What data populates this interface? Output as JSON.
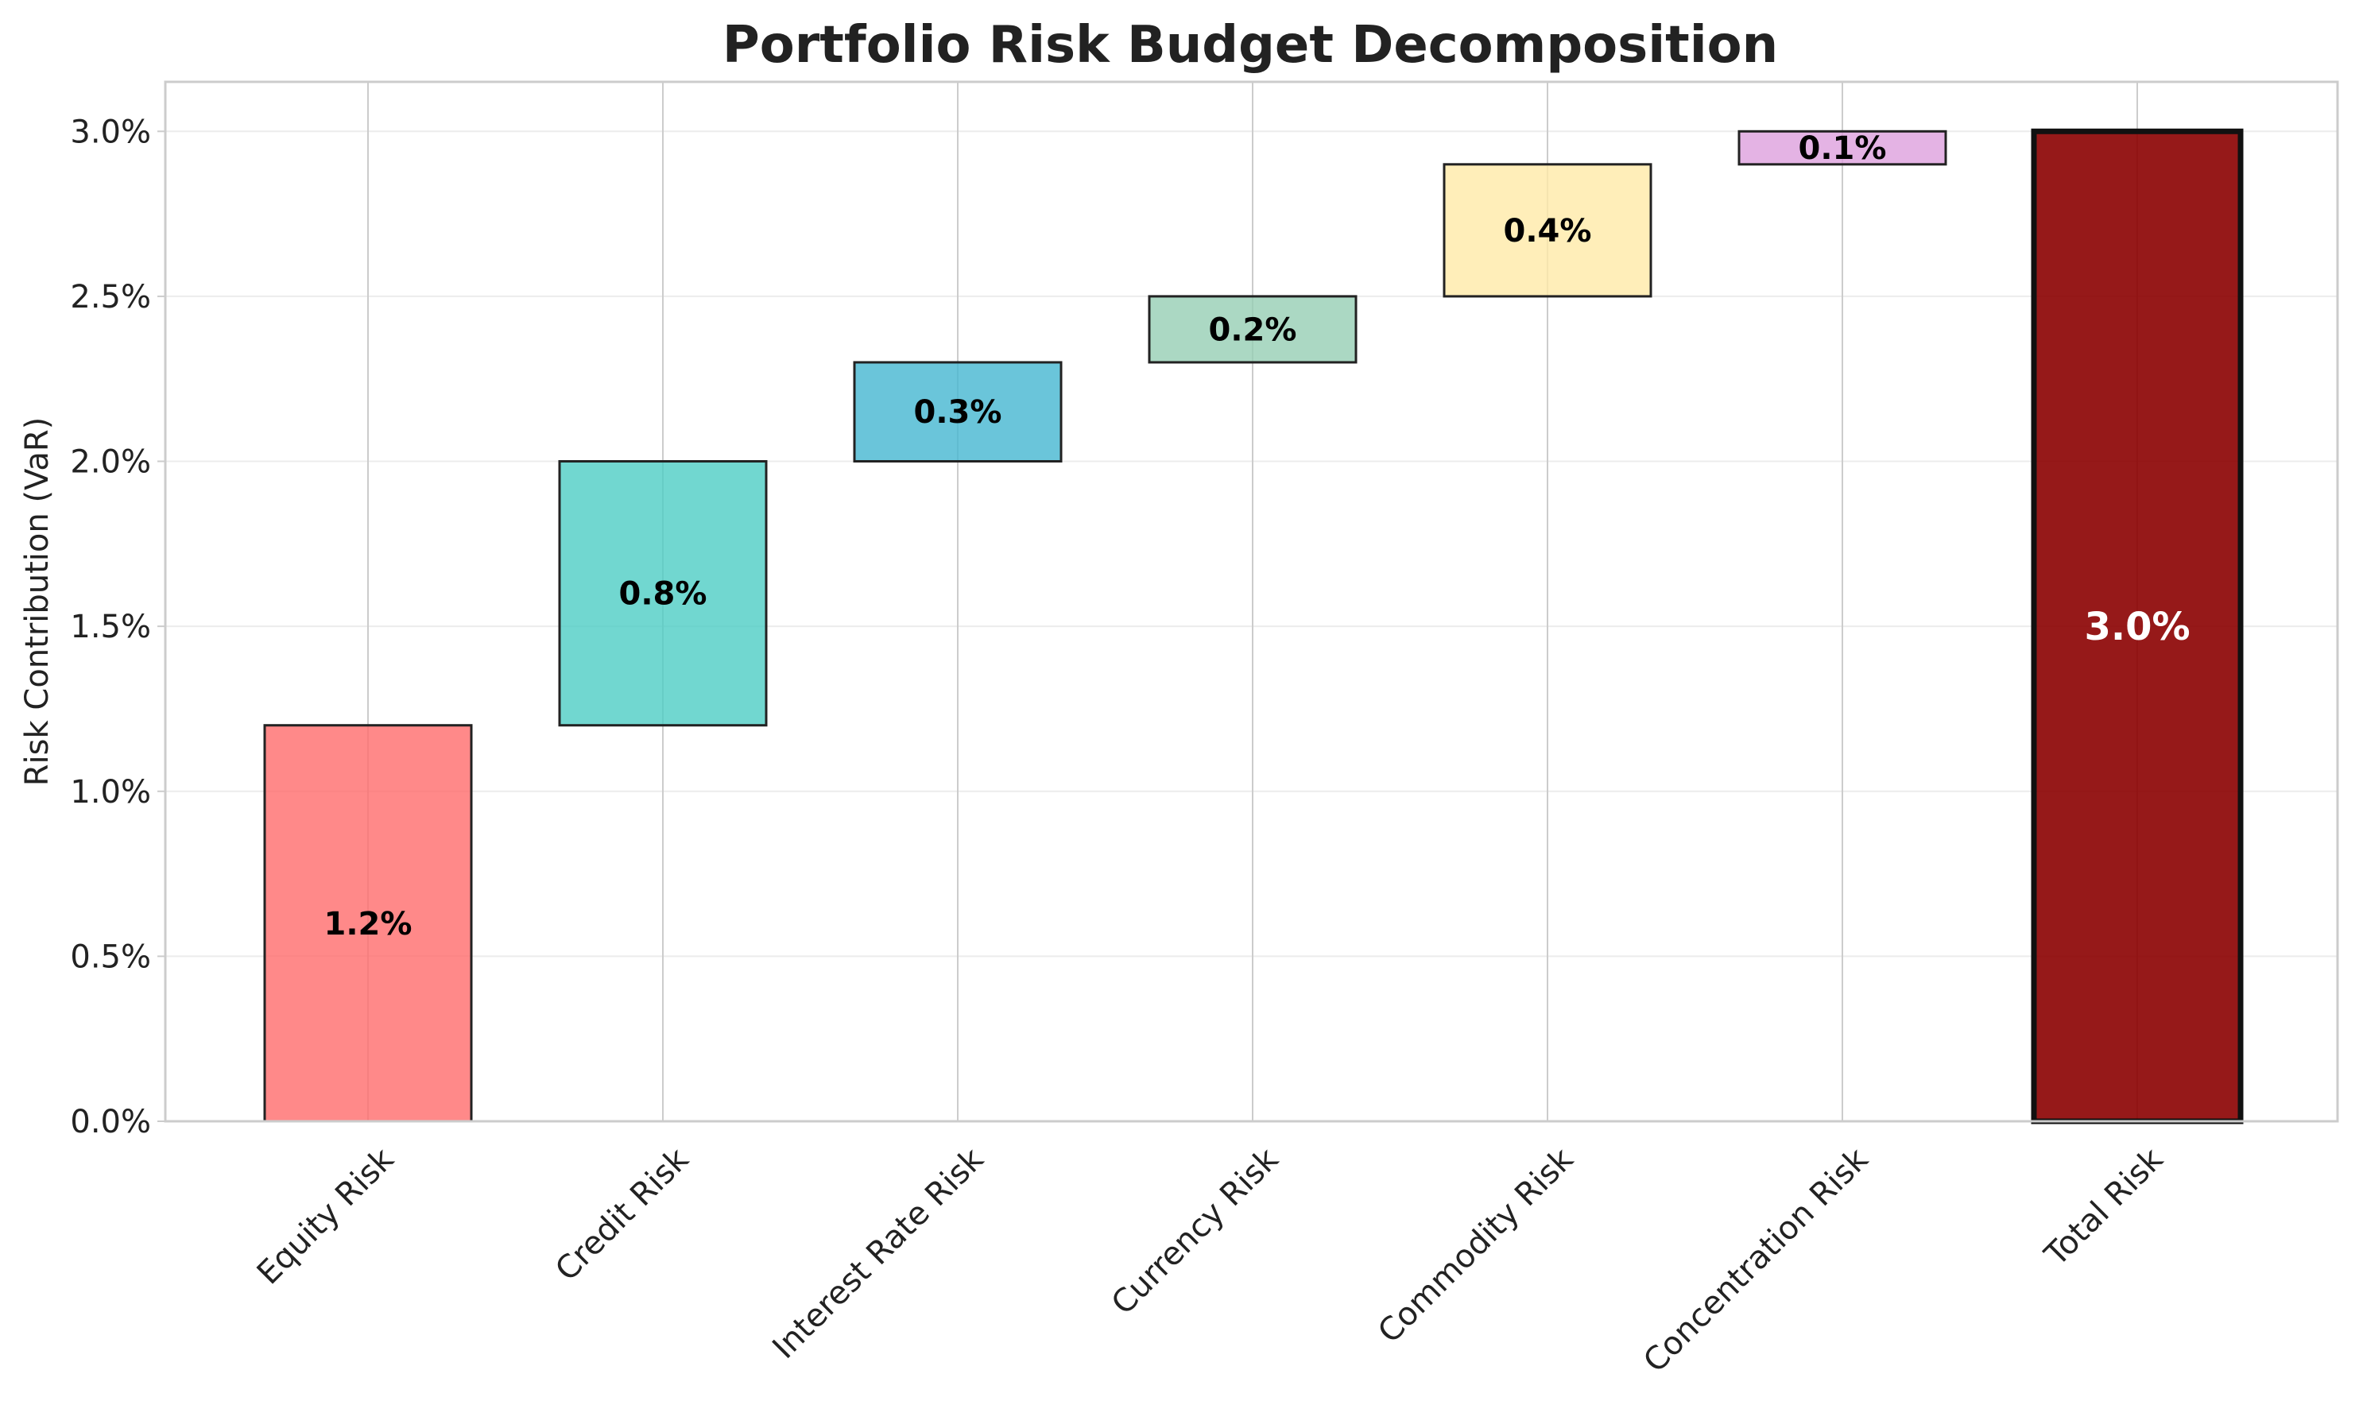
{
  "chart_data": {
    "type": "bar",
    "subtype": "waterfall",
    "title": "Portfolio Risk Budget Decomposition",
    "xlabel": "",
    "ylabel": "Risk Contribution (VaR)",
    "ylim": [
      0.0,
      3.15
    ],
    "yticks": [
      0.0,
      0.5,
      1.0,
      1.5,
      2.0,
      2.5,
      3.0
    ],
    "ytick_labels": [
      "0.0%",
      "0.5%",
      "1.0%",
      "1.5%",
      "2.0%",
      "2.5%",
      "3.0%"
    ],
    "grid": true,
    "legend": "none",
    "categories": [
      "Equity Risk",
      "Credit Risk",
      "Interest Rate Risk",
      "Currency Risk",
      "Commodity Risk",
      "Concentration Risk",
      "Total Risk"
    ],
    "values": [
      1.2,
      0.8,
      0.3,
      0.2,
      0.4,
      0.1,
      3.0
    ],
    "bases": [
      0.0,
      1.2,
      2.0,
      2.3,
      2.5,
      2.9,
      0.0
    ],
    "labels": [
      "1.2%",
      "0.8%",
      "0.3%",
      "0.2%",
      "0.4%",
      "0.1%",
      "3.0%"
    ],
    "colors": [
      "#FF6B6B",
      "#4ECDC4",
      "#45B7D1",
      "#96CEB4",
      "#FFEAA7",
      "#DDA0DD",
      "#8B0000"
    ],
    "label_colors": [
      "#000000",
      "#000000",
      "#000000",
      "#000000",
      "#000000",
      "#000000",
      "#ffffff"
    ],
    "total_index": 6
  }
}
